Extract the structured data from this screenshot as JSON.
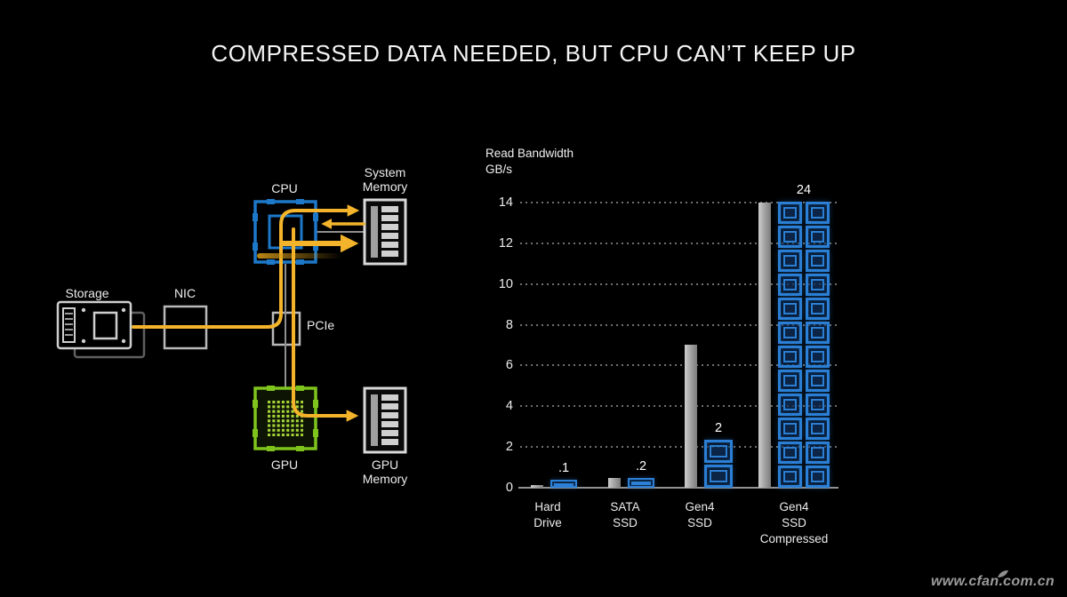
{
  "title": "COMPRESSED DATA NEEDED, BUT CPU CAN’T KEEP UP",
  "diagram": {
    "labels": {
      "cpu": "CPU",
      "system_memory": "System\nMemory",
      "storage": "Storage",
      "nic": "NIC",
      "pcie": "PCIe",
      "gpu": "GPU",
      "gpu_memory": "GPU\nMemory"
    },
    "colors": {
      "cpu_blue": "#1d78c8",
      "gpu_green": "#7fc41c",
      "flow_yellow": "#f3b42b",
      "connector_gray": "#8f8f8f"
    }
  },
  "chart_data": {
    "type": "bar",
    "title": "Read Bandwidth",
    "unit": "GB/s",
    "ylabel": "Read Bandwidth\nGB/s",
    "ylim": [
      0,
      14
    ],
    "yticks": [
      0,
      2,
      4,
      6,
      8,
      10,
      12,
      14
    ],
    "grid": "dotted-horizontal",
    "legend": "none",
    "categories": [
      "Hard Drive",
      "SATA SSD",
      "Gen4 SSD",
      "Gen4 SSD Compressed"
    ],
    "series": [
      {
        "name": "read_bandwidth_gbps",
        "style": "gray-bar",
        "values": [
          0.1,
          0.5,
          7,
          14
        ]
      },
      {
        "name": "cpu_chips_needed",
        "style": "blue-chip-stack",
        "values": [
          0.1,
          0.2,
          2,
          24
        ],
        "labels": [
          ".1",
          ".2",
          "2",
          "24"
        ]
      }
    ],
    "groups": [
      {
        "category_lines": "Hard\nDrive",
        "bar": 0.1,
        "chips": 0.1,
        "chip_label": ".1"
      },
      {
        "category_lines": "SATA\nSSD",
        "bar": 0.5,
        "chips": 0.2,
        "chip_label": ".2"
      },
      {
        "category_lines": "Gen4\nSSD",
        "bar": 7,
        "chips": 2,
        "chip_label": "2"
      },
      {
        "category_lines": "Gen4\nSSD\nCompressed",
        "bar": 14,
        "chips": 24,
        "chip_label": "24"
      }
    ],
    "colors": {
      "bar_gray": "#a9a9a9",
      "chip_blue": "#2b7fd4"
    }
  },
  "watermark": "www.cfan.com.cn"
}
